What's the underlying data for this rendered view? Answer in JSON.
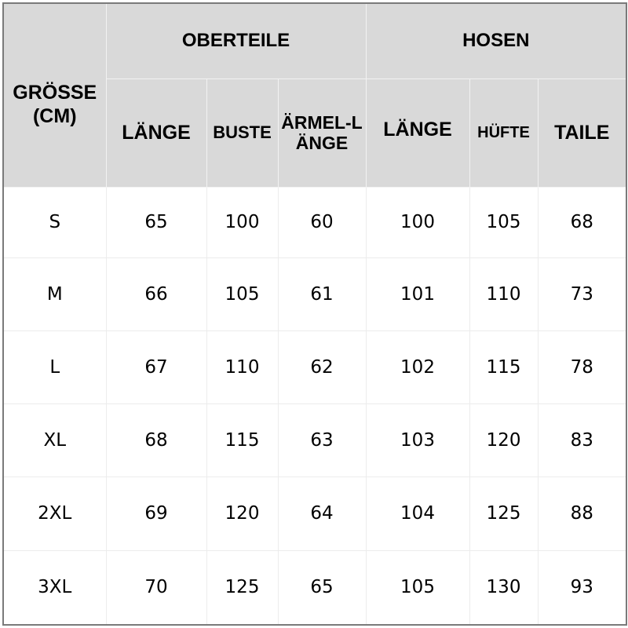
{
  "header": {
    "size_label": "GRÖSSE (CM)",
    "groups": [
      "OBERTEILE",
      "HOSEN"
    ],
    "columns": [
      "LÄNGE",
      "BUSTE",
      "ÄRMEL-LÄNGE",
      "LÄNGE",
      "HÜFTE",
      "TAILE"
    ]
  },
  "rows": [
    {
      "size": "S",
      "values": [
        "65",
        "100",
        "60",
        "100",
        "105",
        "68"
      ]
    },
    {
      "size": "M",
      "values": [
        "66",
        "105",
        "61",
        "101",
        "110",
        "73"
      ]
    },
    {
      "size": "L",
      "values": [
        "67",
        "110",
        "62",
        "102",
        "115",
        "78"
      ]
    },
    {
      "size": "XL",
      "values": [
        "68",
        "115",
        "63",
        "103",
        "120",
        "83"
      ]
    },
    {
      "size": "2XL",
      "values": [
        "69",
        "120",
        "64",
        "104",
        "125",
        "88"
      ]
    },
    {
      "size": "3XL",
      "values": [
        "70",
        "125",
        "65",
        "105",
        "130",
        "93"
      ]
    }
  ],
  "colors": {
    "header_bg": "#d9d9d9",
    "border": "#7a7a7a"
  }
}
